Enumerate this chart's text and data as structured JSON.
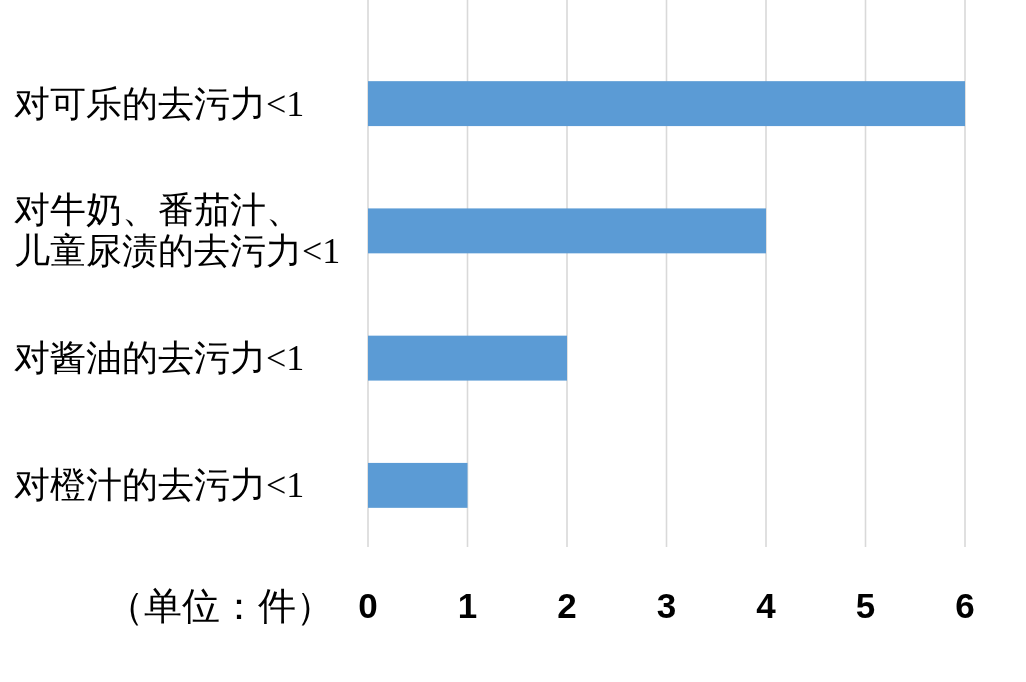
{
  "chart_data": {
    "type": "bar",
    "orientation": "horizontal",
    "categories": [
      "对可乐的去污力<1",
      "对牛奶、番茄汁、儿童尿渍的去污力<1",
      "对酱油的去污力<1",
      "对橙汁的去污力<1"
    ],
    "values": [
      6,
      4,
      2,
      1
    ],
    "color": "#5b9bd5",
    "xlabel": "（单位：件）",
    "xlim": [
      0,
      6
    ],
    "xticks": [
      0,
      1,
      2,
      3,
      4,
      5,
      6
    ],
    "grid": "x"
  }
}
